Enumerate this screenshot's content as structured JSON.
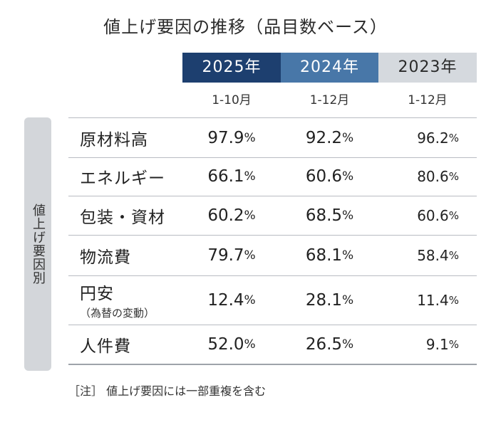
{
  "chart_data": {
    "type": "table",
    "title": "値上げ要因の推移（品目数ベース）",
    "row_group_label": "値上げ要因別",
    "columns": [
      {
        "year": "2025年",
        "period": "1-10月"
      },
      {
        "year": "2024年",
        "period": "1-12月"
      },
      {
        "year": "2023年",
        "period": "1-12月"
      }
    ],
    "unit": "%",
    "rows": [
      {
        "factor": "原材料高",
        "sub": "",
        "values": [
          "97.9",
          "92.2",
          "96.2"
        ]
      },
      {
        "factor": "エネルギー",
        "sub": "",
        "values": [
          "66.1",
          "60.6",
          "80.6"
        ]
      },
      {
        "factor": "包装・資材",
        "sub": "",
        "values": [
          "60.2",
          "68.5",
          "60.6"
        ]
      },
      {
        "factor": "物流費",
        "sub": "",
        "values": [
          "79.7",
          "68.1",
          "58.4"
        ]
      },
      {
        "factor": "円安",
        "sub": "（為替の変動）",
        "values": [
          "12.4",
          "28.1",
          "11.4"
        ]
      },
      {
        "factor": "人件費",
        "sub": "",
        "values": [
          "52.0",
          "26.5",
          "9.1"
        ]
      }
    ],
    "note": "［注］ 値上げ要因には一部重複を含む"
  },
  "colors": {
    "header_2025": "#1d3f6f",
    "header_2024": "#4877a8",
    "header_2023": "#d5d9de"
  }
}
